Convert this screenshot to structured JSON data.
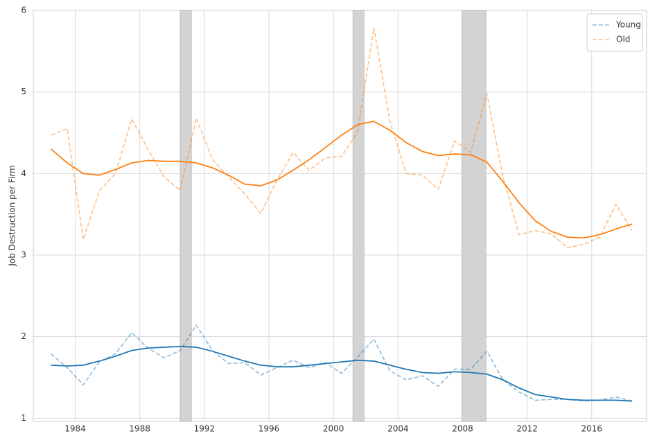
{
  "chart_data": {
    "type": "line",
    "y_label": "Job Destruction per Firm",
    "x": [
      1982.5,
      1983.5,
      1984.5,
      1985.5,
      1986.5,
      1987.5,
      1988.5,
      1989.5,
      1990.5,
      1991.5,
      1992.5,
      1993.5,
      1994.5,
      1995.5,
      1996.5,
      1997.5,
      1998.5,
      1999.5,
      2000.5,
      2001.5,
      2002.5,
      2003.5,
      2004.5,
      2005.5,
      2006.5,
      2007.5,
      2008.5,
      2009.5,
      2010.5,
      2011.5,
      2012.5,
      2013.5,
      2014.5,
      2015.5,
      2016.5,
      2017.5,
      2018.5
    ],
    "series": [
      {
        "name": "Young",
        "color": "#1f77b4",
        "style": "dashed",
        "opacity": 0.5,
        "values": [
          1.79,
          1.62,
          1.41,
          1.69,
          1.79,
          2.05,
          1.86,
          1.74,
          1.83,
          2.14,
          1.83,
          1.67,
          1.68,
          1.53,
          1.62,
          1.71,
          1.62,
          1.68,
          1.55,
          1.75,
          1.97,
          1.58,
          1.47,
          1.52,
          1.39,
          1.6,
          1.6,
          1.82,
          1.47,
          1.32,
          1.22,
          1.23,
          1.23,
          1.21,
          1.22,
          1.26,
          1.21
        ]
      },
      {
        "name": "Old",
        "color": "#ff7f0e",
        "style": "dashed",
        "opacity": 0.5,
        "values": [
          4.47,
          4.55,
          3.19,
          3.79,
          4.0,
          4.67,
          4.3,
          3.96,
          3.79,
          4.68,
          4.17,
          3.96,
          3.75,
          3.51,
          3.92,
          4.26,
          4.04,
          4.19,
          4.21,
          4.51,
          5.79,
          4.64,
          4.0,
          3.98,
          3.81,
          4.4,
          4.26,
          4.98,
          3.96,
          3.25,
          3.3,
          3.26,
          3.09,
          3.13,
          3.22,
          3.62,
          3.3
        ]
      },
      {
        "color": "#1f77b4",
        "style": "solid",
        "opacity": 1,
        "values": [
          1.65,
          1.64,
          1.65,
          1.7,
          1.76,
          1.83,
          1.86,
          1.87,
          1.88,
          1.87,
          1.82,
          1.76,
          1.7,
          1.65,
          1.63,
          1.63,
          1.65,
          1.67,
          1.69,
          1.71,
          1.7,
          1.65,
          1.6,
          1.56,
          1.55,
          1.57,
          1.56,
          1.54,
          1.47,
          1.37,
          1.29,
          1.26,
          1.23,
          1.22,
          1.22,
          1.22,
          1.21
        ]
      },
      {
        "color": "#ff7f0e",
        "style": "solid",
        "opacity": 1,
        "values": [
          4.3,
          4.13,
          4.0,
          3.98,
          4.05,
          4.13,
          4.16,
          4.15,
          4.15,
          4.13,
          4.07,
          3.98,
          3.87,
          3.85,
          3.92,
          4.04,
          4.17,
          4.32,
          4.47,
          4.6,
          4.64,
          4.53,
          4.38,
          4.27,
          4.22,
          4.24,
          4.23,
          4.14,
          3.9,
          3.64,
          3.42,
          3.29,
          3.22,
          3.21,
          3.25,
          3.32,
          3.38
        ]
      }
    ],
    "shaded_regions": [
      {
        "start": 1990.5,
        "end": 1991.2
      },
      {
        "start": 2001.2,
        "end": 2001.9
      },
      {
        "start": 2007.95,
        "end": 2009.45
      }
    ],
    "shade_color": "#d3d3d3",
    "xlim": [
      1981.4,
      2019.4
    ],
    "xticks": [
      1984,
      1988,
      1992,
      1996,
      2000,
      2004,
      2008,
      2012,
      2016
    ],
    "ylim": [
      0.96,
      6
    ],
    "yticks": [
      1,
      2,
      3,
      4,
      5,
      6
    ],
    "grid": true,
    "legend": "upper right"
  }
}
